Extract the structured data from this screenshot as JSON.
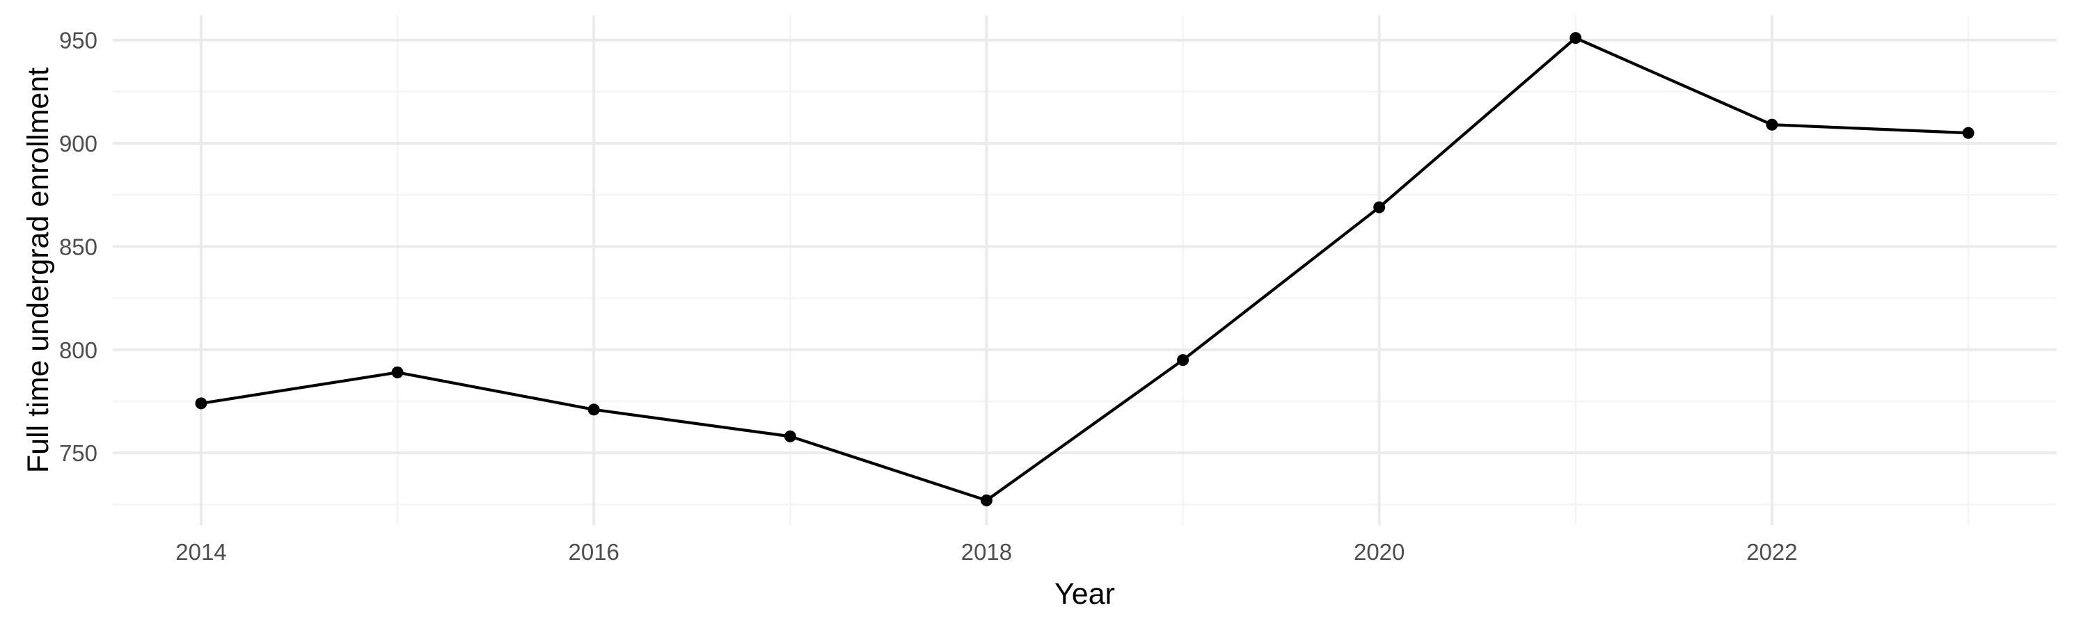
{
  "chart_data": {
    "type": "line",
    "title": "",
    "xlabel": "Year",
    "ylabel": "Full time undergrad enrollment",
    "x": [
      2014,
      2015,
      2016,
      2017,
      2018,
      2019,
      2020,
      2021,
      2022,
      2023
    ],
    "series": [
      {
        "values": [
          774,
          789,
          771,
          758,
          727,
          795,
          869,
          951,
          909,
          905
        ]
      }
    ],
    "xlim": [
      2013.55,
      2023.45
    ],
    "ylim": [
      715,
      962
    ],
    "x_ticks": [
      2014,
      2016,
      2018,
      2020,
      2022
    ],
    "x_tick_labels": [
      "2014",
      "2016",
      "2018",
      "2020",
      "2022"
    ],
    "y_ticks": [
      750,
      800,
      850,
      900,
      950
    ],
    "y_tick_labels": [
      "750",
      "800",
      "850",
      "900",
      "950"
    ],
    "x_minor_ticks": [
      2015,
      2017,
      2019,
      2021,
      2023
    ],
    "y_minor_ticks": [
      725,
      775,
      825,
      875,
      925
    ],
    "grid": true,
    "legend": "none",
    "colors": {
      "line": "#000000",
      "grid_major": "#ebebeb",
      "grid_minor": "#f4f4f4",
      "tick_text": "#4d4d4d",
      "background": "#ffffff"
    }
  }
}
